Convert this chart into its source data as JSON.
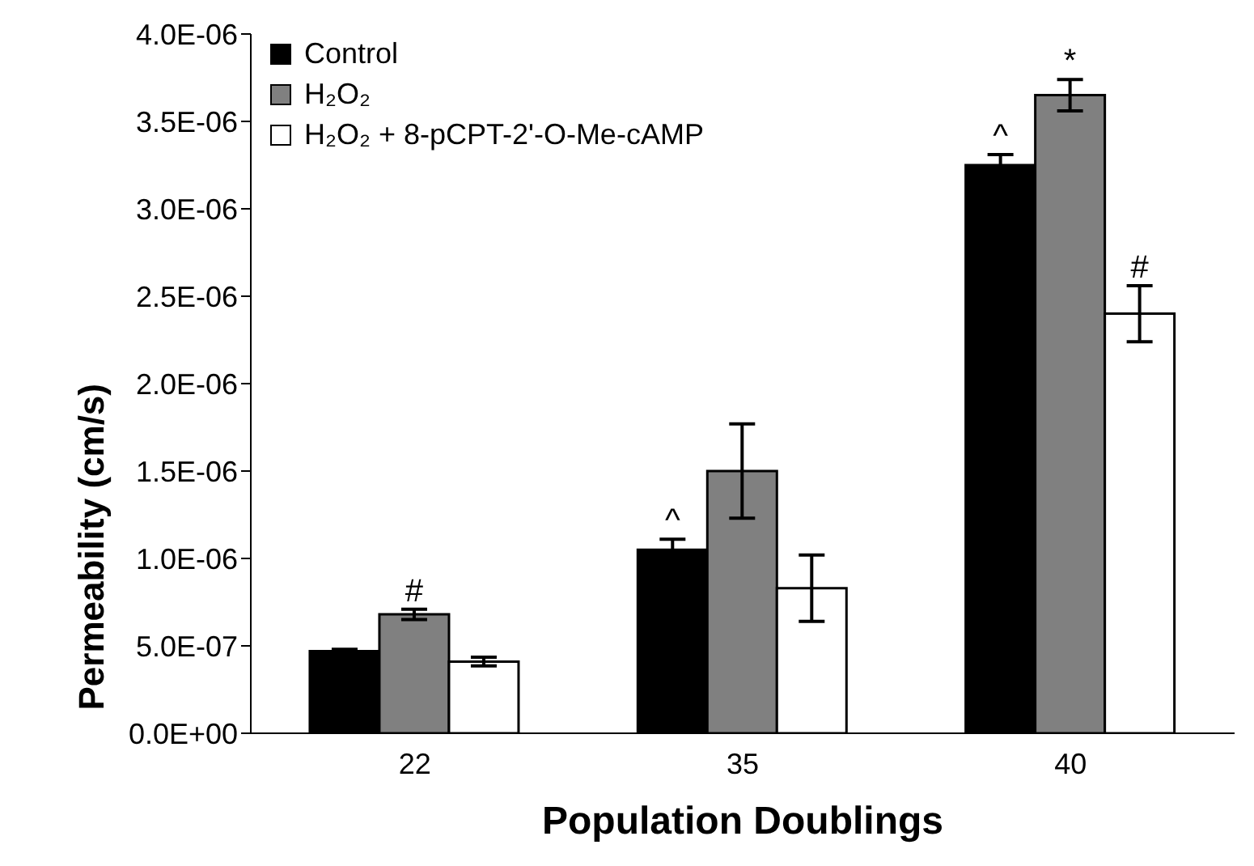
{
  "chart_data": {
    "type": "bar",
    "xlabel": "Population Doublings",
    "ylabel": "Permeability (cm/s)",
    "categories": [
      "22",
      "35",
      "40"
    ],
    "series": [
      {
        "name": "Control",
        "color": "#000000",
        "values": [
          4.7e-07,
          1.05e-06,
          3.25e-06
        ],
        "errors": [
          1e-08,
          6e-08,
          6e-08
        ]
      },
      {
        "name": "H₂O₂",
        "color": "#808080",
        "values": [
          6.8e-07,
          1.5e-06,
          3.65e-06
        ],
        "errors": [
          3e-08,
          2.7e-07,
          9e-08
        ]
      },
      {
        "name": "H₂O₂ + 8-pCPT-2'-O-Me-cAMP",
        "color": "#ffffff",
        "values": [
          4.1e-07,
          8.3e-07,
          2.4e-06
        ],
        "errors": [
          2.5e-08,
          1.9e-07,
          1.6e-07
        ]
      }
    ],
    "ylim": [
      0,
      4e-06
    ],
    "yticks": [
      {
        "value": 0,
        "label": "0.0E+00"
      },
      {
        "value": 5e-07,
        "label": "5.0E-07"
      },
      {
        "value": 1e-06,
        "label": "1.0E-06"
      },
      {
        "value": 1.5e-06,
        "label": "1.5E-06"
      },
      {
        "value": 2e-06,
        "label": "2.0E-06"
      },
      {
        "value": 2.5e-06,
        "label": "2.5E-06"
      },
      {
        "value": 3e-06,
        "label": "3.0E-06"
      },
      {
        "value": 3.5e-06,
        "label": "3.5E-06"
      },
      {
        "value": 4e-06,
        "label": "4.0E-06"
      }
    ],
    "annotations": [
      {
        "text": "#",
        "x": "22",
        "y": 6.8e-07
      },
      "^",
      "^",
      {
        "text": "*",
        "x": "40",
        "y": 3.65e-06
      },
      "#"
    ],
    "grid": false,
    "legend": "top left"
  }
}
